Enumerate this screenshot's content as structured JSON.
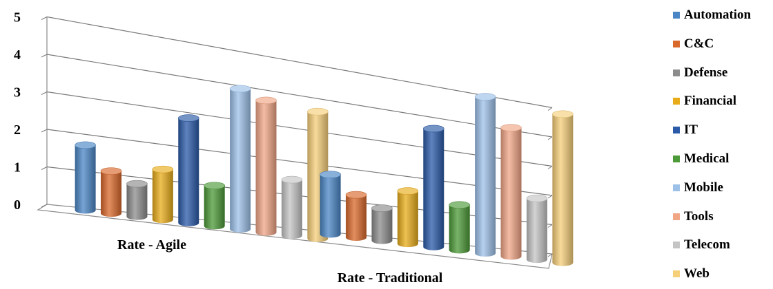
{
  "chart_data": {
    "type": "bar",
    "categories": [
      "Rate - Agile",
      "Rate - Traditional"
    ],
    "y_ticks": [
      "0",
      "1",
      "2",
      "3",
      "4",
      "5"
    ],
    "ylim": [
      0,
      5
    ],
    "grid": true,
    "legend_position": "right",
    "series": [
      {
        "name": "Automation",
        "color": "#4a86c5",
        "values": [
          1.75,
          1.8
        ]
      },
      {
        "name": "C&C",
        "color": "#d9682b",
        "values": [
          1.15,
          1.3
        ]
      },
      {
        "name": "Defense",
        "color": "#8c8c8c",
        "values": [
          0.9,
          1.0
        ]
      },
      {
        "name": "Financial",
        "color": "#e8ac1a",
        "values": [
          1.4,
          1.65
        ]
      },
      {
        "name": "IT",
        "color": "#2a5aa8",
        "values": [
          2.95,
          3.75
        ]
      },
      {
        "name": "Medical",
        "color": "#4c9a38",
        "values": [
          1.15,
          1.45
        ]
      },
      {
        "name": "Mobile",
        "color": "#9cc0e8",
        "values": [
          4.05,
          5.1
        ]
      },
      {
        "name": "Tools",
        "color": "#f0a585",
        "values": [
          3.85,
          4.25
        ]
      },
      {
        "name": "Telecom",
        "color": "#c4c4c4",
        "values": [
          1.65,
          2.05
        ]
      },
      {
        "name": "Web",
        "color": "#f6cf7a",
        "values": [
          3.8,
          5.05
        ]
      }
    ]
  }
}
